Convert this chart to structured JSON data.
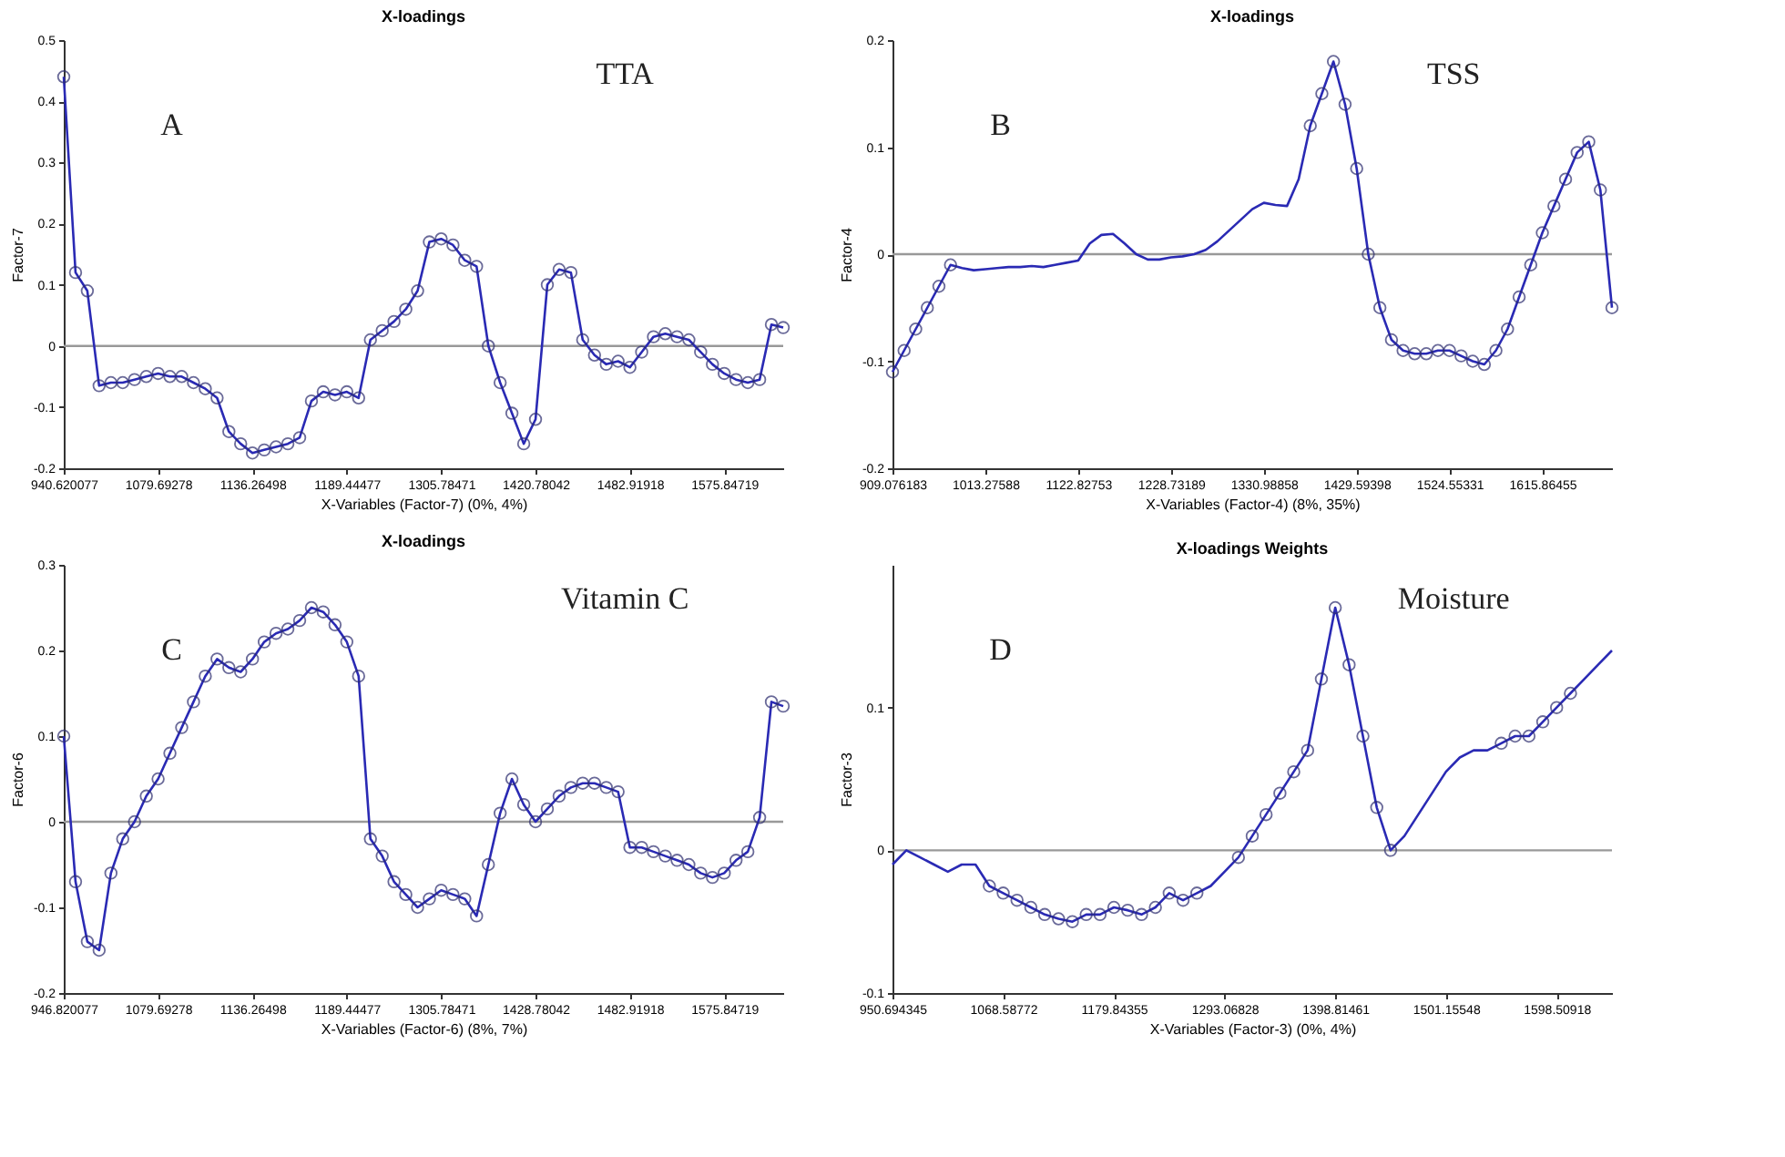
{
  "chart_data": [
    {
      "type": "line",
      "title": "X-loadings",
      "xlabel": "X-Variables (Factor-7) (0%, 4%)",
      "ylabel": "Factor-7",
      "annotations": [
        "A",
        "TTA"
      ],
      "marker": "circle",
      "grid": false,
      "categories": [
        "940.620077",
        null,
        null,
        null,
        null,
        null,
        null,
        null,
        "1079.69278",
        null,
        null,
        null,
        null,
        null,
        null,
        null,
        "1136.26498",
        null,
        null,
        null,
        null,
        null,
        null,
        null,
        "1189.44477",
        null,
        null,
        null,
        null,
        null,
        null,
        null,
        "1305.78471",
        null,
        null,
        null,
        null,
        null,
        null,
        null,
        "1420.78042",
        null,
        null,
        null,
        null,
        null,
        null,
        null,
        "1482.91918",
        null,
        null,
        null,
        null,
        null,
        null,
        null,
        "1575.84719",
        null,
        null,
        null,
        null,
        null
      ],
      "series": [
        {
          "color": "#2a2ab4",
          "values": [
            0.44,
            0.12,
            0.09,
            -0.065,
            -0.06,
            -0.06,
            -0.055,
            -0.05,
            -0.045,
            -0.05,
            -0.05,
            -0.06,
            -0.07,
            -0.085,
            -0.14,
            -0.16,
            -0.175,
            -0.17,
            -0.165,
            -0.16,
            -0.15,
            -0.09,
            -0.075,
            -0.08,
            -0.075,
            -0.085,
            0.01,
            0.025,
            0.04,
            0.06,
            0.09,
            0.17,
            0.175,
            0.165,
            0.14,
            0.13,
            0.0,
            -0.06,
            -0.11,
            -0.16,
            -0.12,
            0.1,
            0.125,
            0.12,
            0.01,
            -0.015,
            -0.03,
            -0.025,
            -0.035,
            -0.01,
            0.015,
            0.02,
            0.015,
            0.01,
            -0.01,
            -0.03,
            -0.045,
            -0.055,
            -0.06,
            -0.055,
            0.035,
            0.03
          ]
        }
      ],
      "ylim": [
        -0.2,
        0.5
      ],
      "yticks": [
        -0.2,
        -0.1,
        0,
        0.1,
        0.2,
        0.3,
        0.4,
        0.5
      ],
      "ref_lines": [
        {
          "axis": "y",
          "value": 0,
          "color": "#999999"
        }
      ]
    },
    {
      "type": "line",
      "title": "X-loadings",
      "xlabel": "X-Variables (Factor-4) (8%, 35%)",
      "ylabel": "Factor-4",
      "annotations": [
        "B",
        "TSS"
      ],
      "grid": false,
      "categories": [
        "909.076183",
        null,
        null,
        null,
        null,
        null,
        null,
        null,
        "1013.27588",
        null,
        null,
        null,
        null,
        null,
        null,
        null,
        "1122.82753",
        null,
        null,
        null,
        null,
        null,
        null,
        null,
        "1228.73189",
        null,
        null,
        null,
        null,
        null,
        null,
        null,
        "1330.98858",
        null,
        null,
        null,
        null,
        null,
        null,
        null,
        "1429.59398",
        null,
        null,
        null,
        null,
        null,
        null,
        null,
        "1524.55331",
        null,
        null,
        null,
        null,
        null,
        null,
        null,
        "1615.86455",
        null,
        null,
        null,
        null,
        null,
        null
      ],
      "series": [
        {
          "color": "#2a2ab4",
          "values": [
            -0.11,
            -0.09,
            -0.07,
            -0.05,
            -0.03,
            -0.01,
            -0.013,
            -0.015,
            -0.014,
            -0.013,
            -0.012,
            -0.012,
            -0.011,
            -0.012,
            -0.01,
            -0.008,
            -0.006,
            0.01,
            0.018,
            0.019,
            0.01,
            0.0,
            -0.005,
            -0.005,
            -0.003,
            -0.002,
            0.0,
            0.004,
            0.012,
            0.022,
            0.032,
            0.042,
            0.048,
            0.046,
            0.045,
            0.07,
            0.12,
            0.15,
            0.18,
            0.14,
            0.08,
            0.0,
            -0.05,
            -0.08,
            -0.09,
            -0.093,
            -0.093,
            -0.09,
            -0.09,
            -0.095,
            -0.1,
            -0.103,
            -0.09,
            -0.07,
            -0.04,
            -0.01,
            0.02,
            0.045,
            0.07,
            0.095,
            0.105,
            0.06,
            -0.05
          ]
        },
        {
          "type": "scatter",
          "color": "#2c2c6e",
          "values": [
            -0.11,
            -0.09,
            -0.07,
            -0.05,
            -0.03,
            -0.01,
            null,
            null,
            null,
            null,
            null,
            null,
            null,
            null,
            null,
            null,
            null,
            null,
            null,
            null,
            null,
            null,
            null,
            null,
            null,
            null,
            null,
            null,
            null,
            null,
            null,
            null,
            null,
            null,
            null,
            null,
            0.12,
            0.15,
            0.18,
            0.14,
            0.08,
            0.0,
            -0.05,
            -0.08,
            -0.09,
            -0.093,
            -0.093,
            -0.09,
            -0.09,
            -0.095,
            -0.1,
            -0.103,
            -0.09,
            -0.07,
            -0.04,
            -0.01,
            0.02,
            0.045,
            0.07,
            0.095,
            0.105,
            0.06,
            -0.05
          ]
        }
      ],
      "ylim": [
        -0.2,
        0.2
      ],
      "yticks": [
        -0.2,
        -0.1,
        0,
        0.1,
        0.2
      ],
      "ref_lines": [
        {
          "axis": "y",
          "value": 0,
          "color": "#999999"
        }
      ]
    },
    {
      "type": "line",
      "title": "X-loadings",
      "xlabel": "X-Variables (Factor-6) (8%, 7%)",
      "ylabel": "Factor-6",
      "annotations": [
        "C",
        "Vitamin C"
      ],
      "marker": "circle",
      "grid": false,
      "categories": [
        "946.820077",
        null,
        null,
        null,
        null,
        null,
        null,
        null,
        "1079.69278",
        null,
        null,
        null,
        null,
        null,
        null,
        null,
        "1136.26498",
        null,
        null,
        null,
        null,
        null,
        null,
        null,
        "1189.44477",
        null,
        null,
        null,
        null,
        null,
        null,
        null,
        "1305.78471",
        null,
        null,
        null,
        null,
        null,
        null,
        null,
        "1428.78042",
        null,
        null,
        null,
        null,
        null,
        null,
        null,
        "1482.91918",
        null,
        null,
        null,
        null,
        null,
        null,
        null,
        "1575.84719",
        null,
        null,
        null,
        null,
        null
      ],
      "series": [
        {
          "color": "#2a2ab4",
          "values": [
            0.1,
            -0.07,
            -0.14,
            -0.15,
            -0.06,
            -0.02,
            0.0,
            0.03,
            0.05,
            0.08,
            0.11,
            0.14,
            0.17,
            0.19,
            0.18,
            0.175,
            0.19,
            0.21,
            0.22,
            0.225,
            0.235,
            0.25,
            0.245,
            0.23,
            0.21,
            0.17,
            -0.02,
            -0.04,
            -0.07,
            -0.085,
            -0.1,
            -0.09,
            -0.08,
            -0.085,
            -0.09,
            -0.11,
            -0.05,
            0.01,
            0.05,
            0.02,
            0.0,
            0.015,
            0.03,
            0.04,
            0.045,
            0.045,
            0.04,
            0.035,
            -0.03,
            -0.03,
            -0.035,
            -0.04,
            -0.045,
            -0.05,
            -0.06,
            -0.065,
            -0.06,
            -0.045,
            -0.035,
            0.005,
            0.14,
            0.135
          ]
        }
      ],
      "ylim": [
        -0.2,
        0.3
      ],
      "yticks": [
        -0.2,
        -0.1,
        0,
        0.1,
        0.2,
        0.3
      ],
      "ref_lines": [
        {
          "axis": "y",
          "value": 0,
          "color": "#999999"
        }
      ]
    },
    {
      "type": "line",
      "title": "X-loadings Weights",
      "xlabel": "X-Variables (Factor-3) (0%, 4%)",
      "ylabel": "Factor-3",
      "annotations": [
        "D",
        "Moisture"
      ],
      "grid": false,
      "categories": [
        "950.694345",
        null,
        null,
        null,
        null,
        null,
        null,
        null,
        "1068.58772",
        null,
        null,
        null,
        null,
        null,
        null,
        null,
        "1179.84355",
        null,
        null,
        null,
        null,
        null,
        null,
        null,
        "1293.06828",
        null,
        null,
        null,
        null,
        null,
        null,
        null,
        "1398.81461",
        null,
        null,
        null,
        null,
        null,
        null,
        null,
        "1501.15548",
        null,
        null,
        null,
        null,
        null,
        null,
        null,
        "1598.50918",
        null,
        null,
        null,
        null
      ],
      "series": [
        {
          "color": "#2a2ab4",
          "values": [
            -0.01,
            0.0,
            -0.005,
            -0.01,
            -0.015,
            -0.01,
            -0.01,
            -0.025,
            -0.03,
            -0.035,
            -0.04,
            -0.045,
            -0.048,
            -0.05,
            -0.045,
            -0.045,
            -0.04,
            -0.042,
            -0.045,
            -0.04,
            -0.03,
            -0.035,
            -0.03,
            -0.025,
            -0.015,
            -0.005,
            0.01,
            0.025,
            0.04,
            0.055,
            0.07,
            0.12,
            0.17,
            0.13,
            0.08,
            0.03,
            0.0,
            0.01,
            0.025,
            0.04,
            0.055,
            0.065,
            0.07,
            0.07,
            0.075,
            0.08,
            0.08,
            0.09,
            0.1,
            0.11,
            0.12,
            0.13,
            0.14
          ]
        },
        {
          "type": "scatter",
          "color": "#2c2c6e",
          "values": [
            null,
            null,
            null,
            null,
            null,
            null,
            null,
            -0.025,
            -0.03,
            -0.035,
            -0.04,
            -0.045,
            -0.048,
            -0.05,
            -0.045,
            -0.045,
            -0.04,
            -0.042,
            -0.045,
            -0.04,
            -0.03,
            -0.035,
            -0.03,
            null,
            null,
            -0.005,
            0.01,
            0.025,
            0.04,
            0.055,
            0.07,
            0.12,
            0.17,
            0.13,
            0.08,
            0.03,
            0.0,
            null,
            null,
            null,
            null,
            null,
            null,
            null,
            0.075,
            0.08,
            0.08,
            0.09,
            0.1,
            0.11,
            null,
            null,
            null
          ]
        }
      ],
      "ylim": [
        -0.1,
        0.2
      ],
      "yticks": [
        -0.1,
        0,
        0.1
      ],
      "ref_lines": [
        {
          "axis": "y",
          "value": 0,
          "color": "#999999"
        }
      ]
    }
  ]
}
